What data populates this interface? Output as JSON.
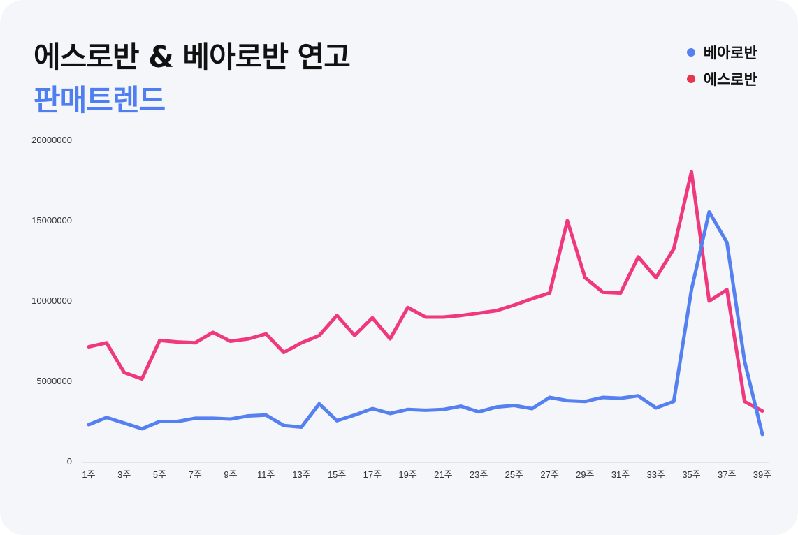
{
  "title": "에스로반 & 베아로반 연고",
  "subtitle": "판매트렌드",
  "colors": {
    "beaurobaan": "#5580f0",
    "esrobaan": "#f0387f",
    "accent": "#4f7ef0",
    "background": "#f5f6fa"
  },
  "legend": [
    {
      "label": "베아로반",
      "color": "#5580f0"
    },
    {
      "label": "에스로반",
      "color": "#e8354d"
    }
  ],
  "chart_data": {
    "type": "line",
    "x": [
      "1주",
      "2주",
      "3주",
      "4주",
      "5주",
      "6주",
      "7주",
      "8주",
      "9주",
      "10주",
      "11주",
      "12주",
      "13주",
      "14주",
      "15주",
      "16주",
      "17주",
      "18주",
      "19주",
      "20주",
      "21주",
      "22주",
      "23주",
      "24주",
      "25주",
      "26주",
      "27주",
      "28주",
      "29주",
      "30주",
      "31주",
      "32주",
      "33주",
      "34주",
      "35주",
      "36주",
      "37주",
      "38주",
      "39주"
    ],
    "x_tick_labels": [
      "1주",
      "3주",
      "5주",
      "7주",
      "9주",
      "11주",
      "13주",
      "15주",
      "17주",
      "19주",
      "21주",
      "23주",
      "25주",
      "27주",
      "29주",
      "31주",
      "33주",
      "35주",
      "37주",
      "39주"
    ],
    "y_tick_labels": [
      "20000000",
      "15000000",
      "10000000",
      "5000000",
      "0"
    ],
    "ylim": [
      0,
      20000000
    ],
    "grid": false,
    "legend_position": "top-right",
    "series": [
      {
        "name": "에스로반",
        "color": "#f0387f",
        "values": [
          7150000,
          7400000,
          5550000,
          5150000,
          7550000,
          7450000,
          7400000,
          8050000,
          7500000,
          7650000,
          7950000,
          6800000,
          7400000,
          7850000,
          9100000,
          7850000,
          8950000,
          7650000,
          9600000,
          9000000,
          9000000,
          9100000,
          9250000,
          9400000,
          9750000,
          10150000,
          10500000,
          15000000,
          11450000,
          10550000,
          10500000,
          12750000,
          11450000,
          13250000,
          18050000,
          10000000,
          10700000,
          3750000,
          3150000
        ]
      },
      {
        "name": "베아로반",
        "color": "#5580f0",
        "values": [
          2300000,
          2750000,
          2400000,
          2050000,
          2500000,
          2500000,
          2700000,
          2700000,
          2650000,
          2850000,
          2900000,
          2250000,
          2150000,
          3600000,
          2550000,
          2900000,
          3300000,
          3000000,
          3250000,
          3200000,
          3250000,
          3450000,
          3100000,
          3400000,
          3500000,
          3300000,
          4000000,
          3800000,
          3750000,
          4000000,
          3950000,
          4100000,
          3350000,
          3750000,
          10700000,
          15550000,
          13650000,
          6250000,
          1700000
        ]
      }
    ]
  }
}
